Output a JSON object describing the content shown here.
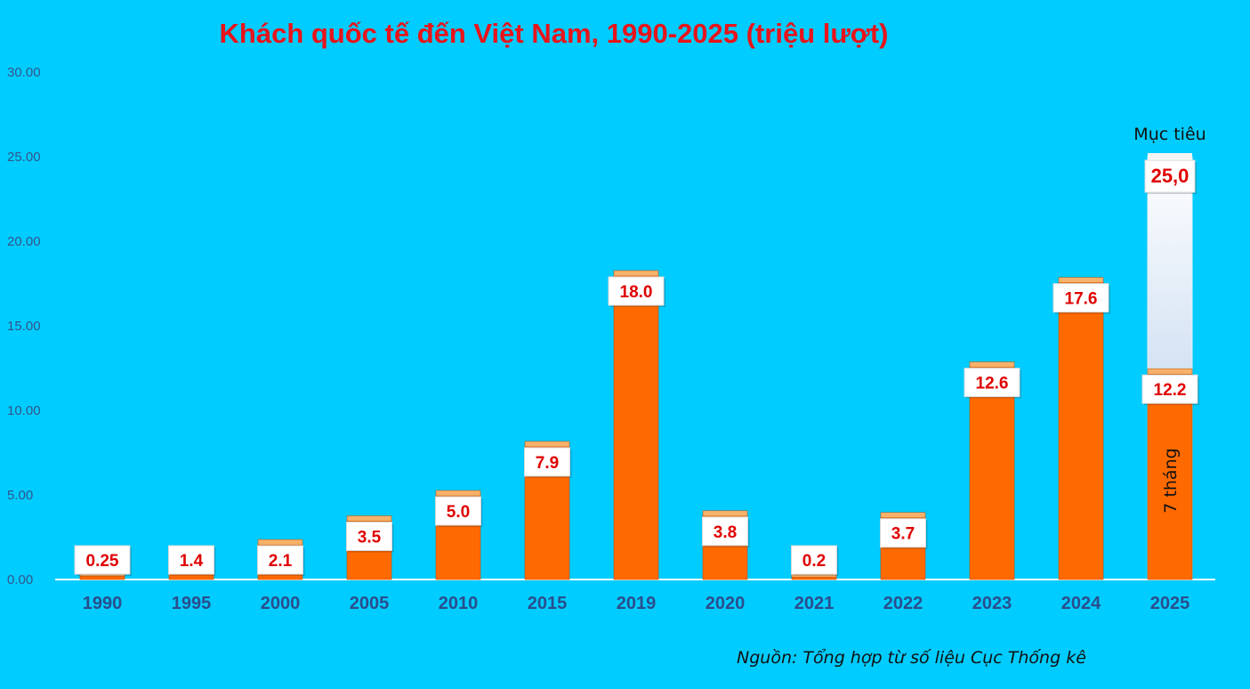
{
  "chart_data": {
    "type": "bar",
    "title": "Khách quốc tế đến Việt Nam, 1990-2025 (triệu lượt)",
    "categories": [
      "1990",
      "1995",
      "2000",
      "2005",
      "2010",
      "2015",
      "2019",
      "2020",
      "2021",
      "2022",
      "2023",
      "2024",
      "2025"
    ],
    "values": [
      0.25,
      1.4,
      2.1,
      3.5,
      5.0,
      7.9,
      18.0,
      3.8,
      0.2,
      3.7,
      12.6,
      17.6,
      12.2
    ],
    "value_labels": [
      "0.25",
      "1.4",
      "2.1",
      "3.5",
      "5.0",
      "7.9",
      "18.0",
      "3.8",
      "0.2",
      "3.7",
      "12.6",
      "17.6",
      "12.2"
    ],
    "target": {
      "category": "2025",
      "value": 25.0,
      "label": "25,0",
      "caption": "Mục tiêu"
    },
    "bar_note": {
      "category": "2025",
      "text": "7 tháng"
    },
    "ylim": [
      0,
      30
    ],
    "yticks": [
      "0.00",
      "5.00",
      "10.00",
      "15.00",
      "20.00",
      "25.00",
      "30.00"
    ],
    "xlabel": "",
    "ylabel": "",
    "grid": false,
    "colors": {
      "bar": "#FF6A00",
      "bar_top": "#F6B26B",
      "background": "#00CCFF",
      "title": "#E8141A",
      "label": "#E00000"
    }
  },
  "source": "Nguồn: Tổng hợp từ số liệu Cục Thống kê"
}
